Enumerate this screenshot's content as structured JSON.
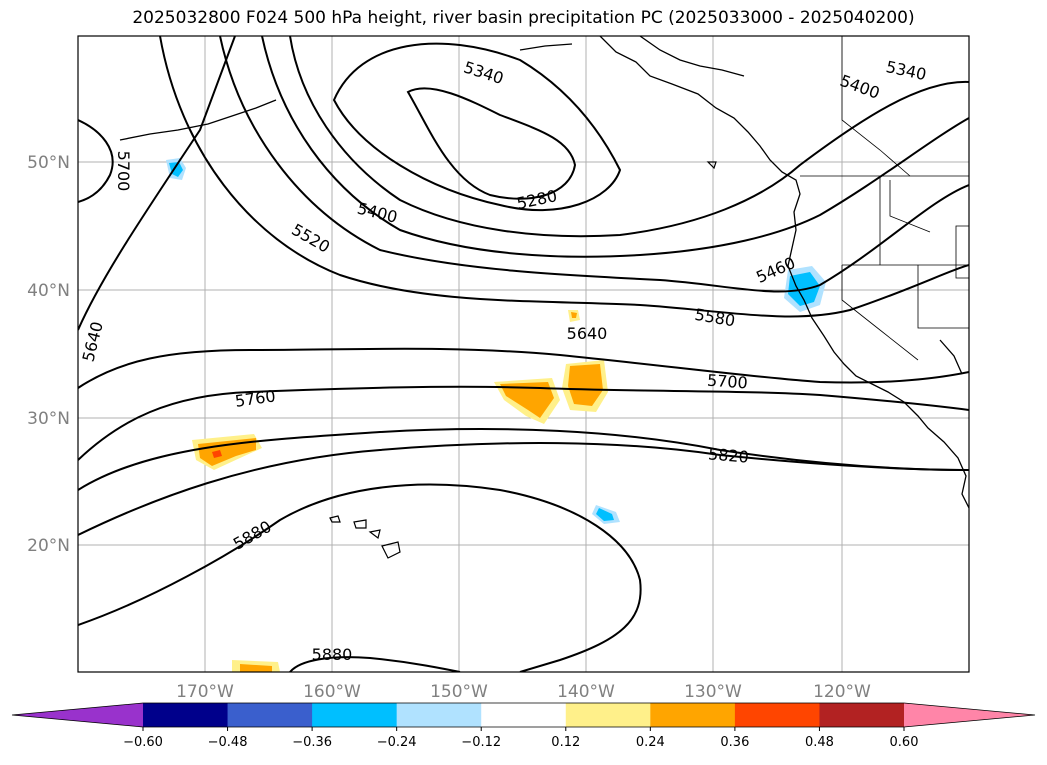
{
  "title": "2025032800 F024 500 hPa height, river basin precipitation PC (2025033000 - 2025040200)",
  "lat_labels": [
    "50°N",
    "40°N",
    "30°N",
    "20°N"
  ],
  "lon_labels": [
    "170°W",
    "160°W",
    "150°W",
    "140°W",
    "130°W",
    "120°W"
  ],
  "contour_labels": [
    "5340",
    "5340",
    "5400",
    "5400",
    "5280",
    "5520",
    "5460",
    "5580",
    "5640",
    "5700",
    "5700",
    "5640",
    "5760",
    "5820",
    "5880",
    "5880"
  ],
  "colorbar": {
    "ticks": [
      "−0.60",
      "−0.48",
      "−0.36",
      "−0.24",
      "−0.12",
      "0.12",
      "0.24",
      "0.36",
      "0.48",
      "0.60"
    ],
    "colors": [
      "#9932cc",
      "#00008b",
      "#3a5fcd",
      "#00bfff",
      "#b0e2ff",
      "#ffffff",
      "#fff08a",
      "#ffa500",
      "#ff4500",
      "#b22222",
      "#ff85a8",
      "#ff85a8"
    ]
  }
}
